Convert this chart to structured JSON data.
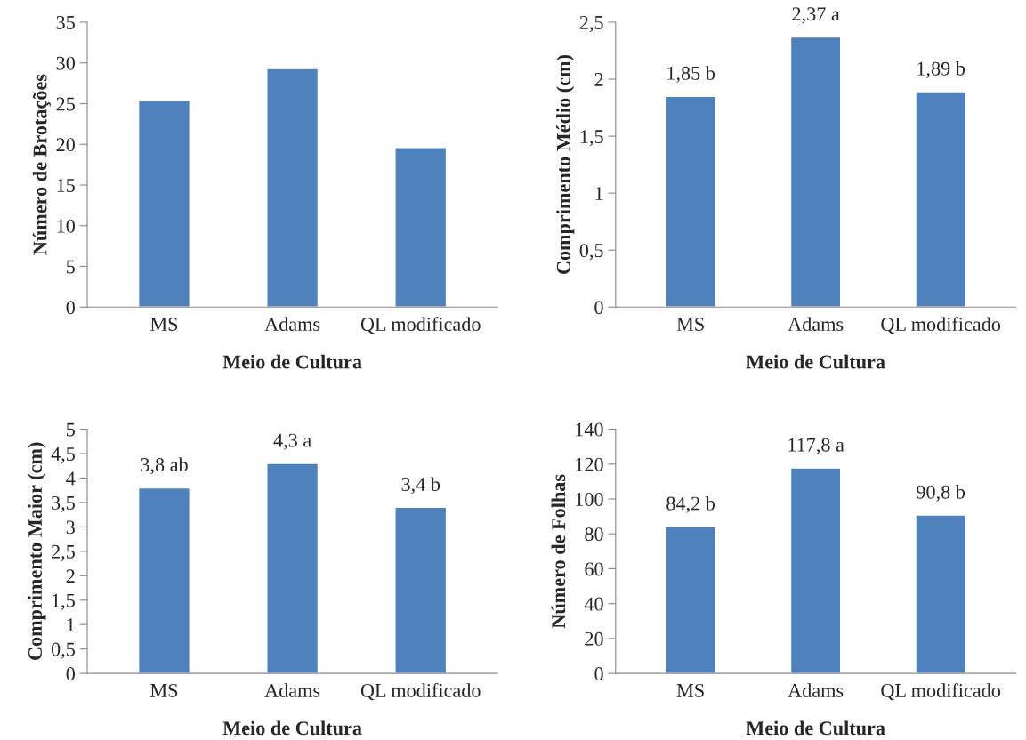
{
  "chart_data": [
    {
      "type": "bar",
      "xlabel": "Meio de Cultura",
      "ylabel": "Número de Brotações",
      "categories": [
        "MS",
        "Adams",
        "QL modificado"
      ],
      "values": [
        25.4,
        29.3,
        19.6
      ],
      "color": "#4f81bd",
      "ylim": [
        0,
        35
      ],
      "yticks": [
        0,
        5,
        10,
        15,
        20,
        25,
        30,
        35
      ],
      "grid": false
    },
    {
      "type": "bar",
      "xlabel": "Meio de Cultura",
      "ylabel": "Comprimento Médio (cm)",
      "categories": [
        "MS",
        "Adams",
        "QL modificado"
      ],
      "values": [
        1.85,
        2.37,
        1.89
      ],
      "value_labels": [
        "1,85 b",
        "2,37 a",
        "1,89 b"
      ],
      "color": "#4f81bd",
      "ylim": [
        0,
        2.5
      ],
      "yticks": [
        0,
        {
          "value": 0.5,
          "label": "0,5"
        },
        1,
        {
          "value": 1.5,
          "label": "1,5"
        },
        2,
        {
          "value": 2.5,
          "label": "2,5"
        }
      ],
      "grid": false
    },
    {
      "type": "bar",
      "xlabel": "Meio de Cultura",
      "ylabel": "Comprimento Maior (cm)",
      "categories": [
        "MS",
        "Adams",
        "QL modificado"
      ],
      "values": [
        3.8,
        4.3,
        3.4
      ],
      "value_labels": [
        "3,8 ab",
        "4,3 a",
        "3,4 b"
      ],
      "color": "#4f81bd",
      "ylim": [
        0,
        5
      ],
      "yticks": [
        0,
        {
          "value": 0.5,
          "label": "0,5"
        },
        1,
        {
          "value": 1.5,
          "label": "1,5"
        },
        2,
        {
          "value": 2.5,
          "label": "2,5"
        },
        3,
        {
          "value": 3.5,
          "label": "3,5"
        },
        4,
        {
          "value": 4.5,
          "label": "4,5"
        },
        5
      ],
      "grid": false
    },
    {
      "type": "bar",
      "xlabel": "Meio de Cultura",
      "ylabel": "Número de Folhas",
      "categories": [
        "MS",
        "Adams",
        "QL modificado"
      ],
      "values": [
        84.2,
        117.8,
        90.8
      ],
      "value_labels": [
        "84,2 b",
        "117,8 a",
        "90,8 b"
      ],
      "color": "#4f81bd",
      "ylim": [
        0,
        140
      ],
      "yticks": [
        0,
        20,
        40,
        60,
        80,
        100,
        120,
        140
      ],
      "grid": false
    }
  ]
}
